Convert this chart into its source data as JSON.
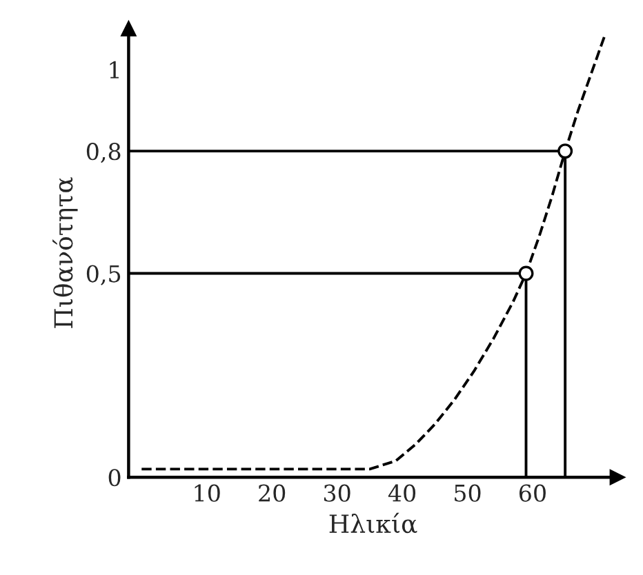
{
  "chart_data": {
    "type": "line",
    "xlabel": "Ηλικία",
    "ylabel": "Πιθανότητα",
    "xlim": [
      -2,
      73
    ],
    "ylim": [
      0,
      1.1
    ],
    "xticks": [
      10,
      20,
      30,
      40,
      50,
      60
    ],
    "yticks": [
      {
        "value": 0,
        "label": "0"
      },
      {
        "value": 0.5,
        "label": "0,5"
      },
      {
        "value": 0.8,
        "label": "0,8"
      },
      {
        "value": 1,
        "label": "1"
      }
    ],
    "grid": false,
    "legend": false,
    "series": [
      {
        "line_style": "dashed",
        "marker": "none",
        "color": "#000000",
        "x": [
          0,
          10,
          20,
          30,
          35,
          39,
          42,
          45,
          48,
          51,
          54,
          57,
          59,
          61,
          63,
          65,
          67,
          69,
          71
        ],
        "values": [
          0.02,
          0.02,
          0.02,
          0.02,
          0.02,
          0.04,
          0.08,
          0.13,
          0.19,
          0.26,
          0.34,
          0.43,
          0.5,
          0.59,
          0.69,
          0.8,
          0.9,
          0.99,
          1.08
        ]
      },
      {
        "line_style": "solid",
        "marker": "none",
        "color": "#000000",
        "x": [
          -2,
          59,
          59
        ],
        "values": [
          0.5,
          0.5,
          0
        ]
      },
      {
        "line_style": "solid",
        "marker": "none",
        "color": "#000000",
        "x": [
          -2,
          65,
          65
        ],
        "values": [
          0.8,
          0.8,
          0
        ]
      },
      {
        "type": "scatter",
        "marker": "circle",
        "color": "#000000",
        "x": [
          59,
          65
        ],
        "values": [
          0.5,
          0.8
        ]
      }
    ]
  }
}
